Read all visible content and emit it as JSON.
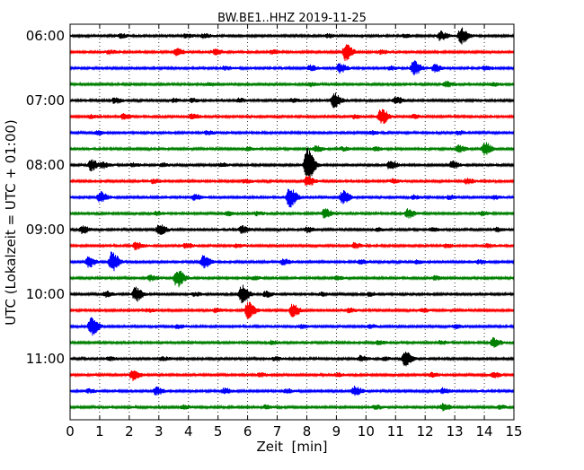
{
  "chart_data": {
    "type": "line",
    "title": "BW.BE1..HHZ 2019-11-25",
    "xlabel": "Zeit  [min]",
    "ylabel": "UTC (Lokalzeit = UTC + 01:00)",
    "xlim": [
      0,
      15
    ],
    "x_ticks": [
      "0",
      "1",
      "2",
      "3",
      "4",
      "5",
      "6",
      "7",
      "8",
      "9",
      "10",
      "11",
      "12",
      "13",
      "14",
      "15"
    ],
    "y_tick_labels": [
      "06:00",
      "07:00",
      "08:00",
      "09:00",
      "10:00",
      "11:00"
    ],
    "rows_per_hour": 4,
    "grid": "vertical dotted",
    "colors": [
      "#000000",
      "#ff0000",
      "#0000ff",
      "#008000"
    ],
    "traces": [
      {
        "start": "06:00",
        "events": [
          [
            13.2,
            9
          ],
          [
            12.5,
            5
          ],
          [
            3.9,
            2
          ],
          [
            1.7,
            2
          ],
          [
            4.5,
            2
          ],
          [
            8.7,
            2
          ],
          [
            11.3,
            2
          ]
        ]
      },
      {
        "start": "06:15",
        "events": [
          [
            9.3,
            9
          ],
          [
            3.6,
            4
          ],
          [
            4.9,
            3
          ],
          [
            1.3,
            2
          ],
          [
            6.8,
            2
          ],
          [
            10.5,
            2
          ]
        ]
      },
      {
        "start": "06:30",
        "events": [
          [
            11.6,
            8
          ],
          [
            12.3,
            4
          ],
          [
            9.1,
            5
          ],
          [
            8.1,
            3
          ],
          [
            5.2,
            2
          ],
          [
            10.8,
            2
          ],
          [
            14.0,
            2
          ]
        ]
      },
      {
        "start": "06:45",
        "events": [
          [
            12.7,
            3
          ],
          [
            4.7,
            2
          ],
          [
            8.1,
            2
          ],
          [
            14.3,
            2
          ]
        ]
      },
      {
        "start": "07:00",
        "events": [
          [
            8.9,
            8
          ],
          [
            11.0,
            4
          ],
          [
            1.5,
            3
          ],
          [
            7.5,
            2
          ],
          [
            4.1,
            2
          ],
          [
            5.7,
            2
          ],
          [
            3.5,
            2
          ]
        ]
      },
      {
        "start": "07:15",
        "events": [
          [
            10.5,
            9
          ],
          [
            4.1,
            3
          ],
          [
            1.8,
            3
          ],
          [
            9.6,
            2
          ],
          [
            11.6,
            2
          ],
          [
            0.7,
            2
          ]
        ]
      },
      {
        "start": "07:30",
        "events": [
          [
            0.9,
            2
          ],
          [
            4.6,
            2
          ],
          [
            10.2,
            2
          ],
          [
            13.1,
            2
          ]
        ]
      },
      {
        "start": "07:45",
        "events": [
          [
            14.0,
            7
          ],
          [
            13.1,
            4
          ],
          [
            8.3,
            3
          ],
          [
            6.0,
            2
          ],
          [
            10.3,
            2
          ],
          [
            9.2,
            2
          ]
        ]
      },
      {
        "start": "08:00",
        "events": [
          [
            8.0,
            19
          ],
          [
            0.7,
            6
          ],
          [
            10.8,
            5
          ],
          [
            12.9,
            4
          ],
          [
            1.1,
            3
          ],
          [
            3.1,
            2
          ],
          [
            5.1,
            2
          ],
          [
            2.1,
            2
          ]
        ]
      },
      {
        "start": "08:15",
        "events": [
          [
            8.0,
            6
          ],
          [
            13.4,
            3
          ],
          [
            5.9,
            2
          ],
          [
            2.8,
            2
          ],
          [
            10.9,
            2
          ]
        ]
      },
      {
        "start": "08:30",
        "events": [
          [
            7.4,
            11
          ],
          [
            9.2,
            7
          ],
          [
            1.0,
            6
          ],
          [
            4.2,
            3
          ],
          [
            11.6,
            2
          ],
          [
            12.8,
            2
          ],
          [
            14.3,
            2
          ]
        ]
      },
      {
        "start": "08:45",
        "events": [
          [
            8.6,
            5
          ],
          [
            11.4,
            5
          ],
          [
            2.9,
            2
          ],
          [
            6.3,
            2
          ],
          [
            13.9,
            2
          ],
          [
            5.3,
            2
          ]
        ]
      },
      {
        "start": "09:00",
        "events": [
          [
            3.0,
            6
          ],
          [
            5.8,
            4
          ],
          [
            0.4,
            4
          ],
          [
            8.0,
            3
          ],
          [
            10.4,
            2
          ],
          [
            12.2,
            2
          ],
          [
            14.4,
            2
          ]
        ]
      },
      {
        "start": "09:15",
        "events": [
          [
            2.2,
            4
          ],
          [
            3.9,
            3
          ],
          [
            9.6,
            3
          ],
          [
            5.6,
            2
          ],
          [
            12.7,
            2
          ],
          [
            14.1,
            2
          ]
        ]
      },
      {
        "start": "09:30",
        "events": [
          [
            1.4,
            11
          ],
          [
            4.5,
            7
          ],
          [
            0.6,
            6
          ],
          [
            7.2,
            3
          ],
          [
            9.8,
            2
          ],
          [
            11.7,
            2
          ],
          [
            13.8,
            2
          ]
        ]
      },
      {
        "start": "09:45",
        "events": [
          [
            3.6,
            10
          ],
          [
            2.7,
            3
          ],
          [
            9.0,
            2
          ],
          [
            12.3,
            2
          ],
          [
            6.2,
            2
          ]
        ]
      },
      {
        "start": "10:00",
        "events": [
          [
            5.8,
            10
          ],
          [
            2.2,
            8
          ],
          [
            6.6,
            3
          ],
          [
            1.2,
            3
          ],
          [
            4.2,
            2
          ],
          [
            8.5,
            2
          ],
          [
            10.1,
            2
          ]
        ]
      },
      {
        "start": "10:15",
        "events": [
          [
            6.0,
            9
          ],
          [
            7.5,
            7
          ],
          [
            2.6,
            2
          ],
          [
            4.9,
            2
          ],
          [
            9.4,
            2
          ],
          [
            11.9,
            2
          ]
        ]
      },
      {
        "start": "10:30",
        "events": [
          [
            0.7,
            10
          ],
          [
            3.6,
            2
          ],
          [
            7.8,
            2
          ],
          [
            10.1,
            2
          ],
          [
            13.0,
            2
          ]
        ]
      },
      {
        "start": "10:45",
        "events": [
          [
            14.3,
            5
          ],
          [
            6.8,
            2
          ],
          [
            10.4,
            2
          ],
          [
            12.5,
            2
          ]
        ]
      },
      {
        "start": "11:00",
        "events": [
          [
            11.3,
            8
          ],
          [
            6.9,
            2
          ],
          [
            9.8,
            3
          ],
          [
            10.6,
            2
          ],
          [
            3.1,
            2
          ],
          [
            1.3,
            2
          ]
        ]
      },
      {
        "start": "11:15",
        "events": [
          [
            2.1,
            6
          ],
          [
            14.3,
            3
          ],
          [
            6.4,
            2
          ],
          [
            9.0,
            2
          ],
          [
            12.2,
            2
          ]
        ]
      },
      {
        "start": "11:30",
        "events": [
          [
            9.6,
            5
          ],
          [
            2.9,
            4
          ],
          [
            5.2,
            3
          ],
          [
            12.6,
            3
          ],
          [
            0.6,
            2
          ],
          [
            7.3,
            2
          ]
        ]
      },
      {
        "start": "11:45",
        "events": [
          [
            12.6,
            4
          ],
          [
            3.8,
            2
          ],
          [
            6.6,
            2
          ],
          [
            10.3,
            2
          ],
          [
            14.5,
            2
          ]
        ]
      }
    ]
  }
}
